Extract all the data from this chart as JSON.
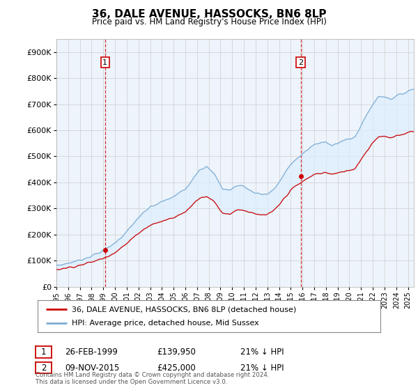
{
  "title": "36, DALE AVENUE, HASSOCKS, BN6 8LP",
  "subtitle": "Price paid vs. HM Land Registry's House Price Index (HPI)",
  "legend_line1": "36, DALE AVENUE, HASSOCKS, BN6 8LP (detached house)",
  "legend_line2": "HPI: Average price, detached house, Mid Sussex",
  "annotation1_date": "26-FEB-1999",
  "annotation1_price": "£139,950",
  "annotation1_hpi": "21% ↓ HPI",
  "annotation2_date": "09-NOV-2015",
  "annotation2_price": "£425,000",
  "annotation2_hpi": "21% ↓ HPI",
  "footer": "Contains HM Land Registry data © Crown copyright and database right 2024.\nThis data is licensed under the Open Government Licence v3.0.",
  "red_line_color": "#cc0000",
  "blue_line_color": "#7aadd4",
  "fill_color": "#ddeeff",
  "vline_color": "#cc0000",
  "background_color": "#ffffff",
  "chart_bg_color": "#eef4fb",
  "grid_color": "#cccccc",
  "ylim": [
    0,
    950000
  ],
  "yticks": [
    0,
    100000,
    200000,
    300000,
    400000,
    500000,
    600000,
    700000,
    800000,
    900000
  ],
  "sale1_x": 1999.15,
  "sale1_y": 139950,
  "sale2_x": 2015.85,
  "sale2_y": 425000,
  "xmin": 1995.0,
  "xmax": 2025.5
}
